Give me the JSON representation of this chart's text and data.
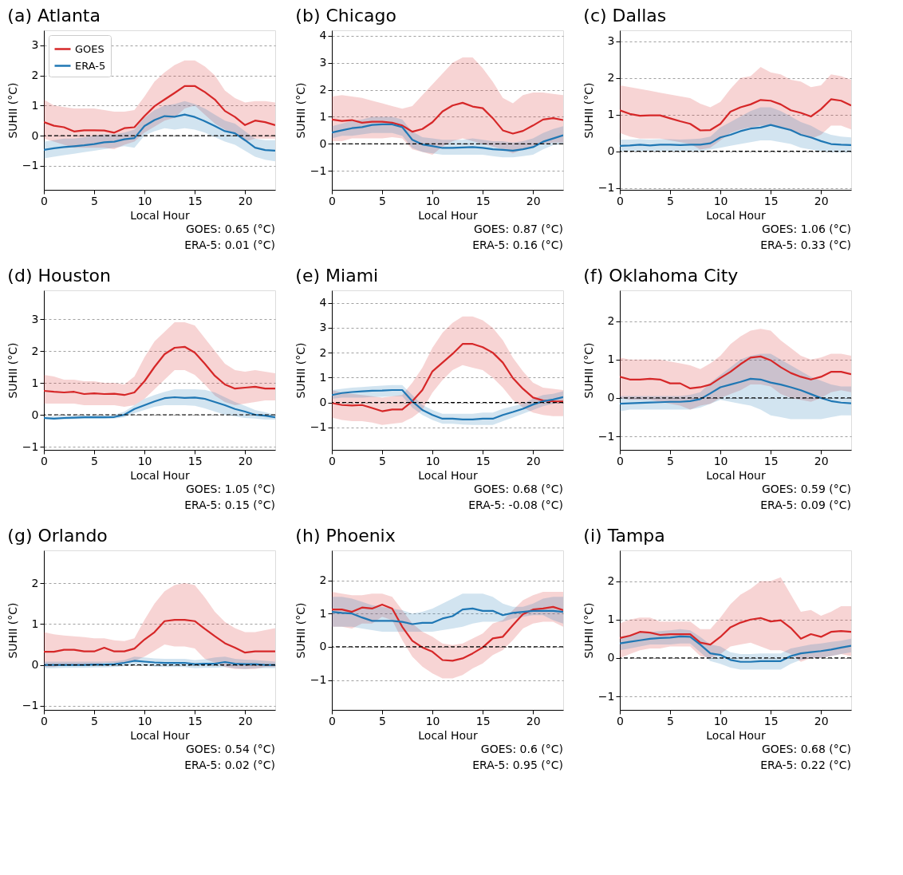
{
  "chart_data": [
    {
      "type": "line",
      "title": "(a) Atlanta",
      "xlabel": "Local Hour",
      "ylabel": "SUHII (°C)",
      "x": [
        0,
        1,
        2,
        3,
        4,
        5,
        6,
        7,
        8,
        9,
        10,
        11,
        12,
        13,
        14,
        15,
        16,
        17,
        18,
        19,
        20,
        21,
        22,
        23
      ],
      "xlim": [
        0,
        23
      ],
      "xticks": [
        0,
        5,
        10,
        15,
        20
      ],
      "ylim": [
        -1.8,
        3.5
      ],
      "yticks": [
        -1,
        0,
        1,
        2,
        3
      ],
      "grid": "y",
      "legend": "top left",
      "ref_lines": [
        {
          "axis": "y",
          "value": 0,
          "color": "#000000",
          "line_style": "dashed"
        }
      ],
      "annotations": [
        "GOES: 0.65 (°C)",
        "ERA-5:  0.01 (°C)"
      ],
      "series": [
        {
          "name": "GOES",
          "color": "#d62728",
          "values": [
            0.45,
            0.33,
            0.28,
            0.14,
            0.18,
            0.18,
            0.17,
            0.1,
            0.25,
            0.28,
            0.65,
            0.98,
            1.2,
            1.42,
            1.65,
            1.65,
            1.45,
            1.2,
            0.82,
            0.62,
            0.35,
            0.5,
            0.45,
            0.35
          ],
          "lower": [
            -0.1,
            -0.2,
            -0.3,
            -0.4,
            -0.4,
            -0.4,
            -0.4,
            -0.45,
            -0.3,
            -0.2,
            0.1,
            0.3,
            0.5,
            0.6,
            0.9,
            1.0,
            0.7,
            0.4,
            0.2,
            0.05,
            -0.2,
            -0.1,
            -0.1,
            -0.1
          ],
          "upper": [
            1.2,
            1.0,
            0.95,
            0.9,
            0.9,
            0.9,
            0.85,
            0.8,
            0.8,
            0.85,
            1.3,
            1.8,
            2.1,
            2.35,
            2.5,
            2.5,
            2.3,
            2.0,
            1.5,
            1.25,
            1.1,
            1.15,
            1.15,
            1.1
          ]
        },
        {
          "name": "ERA-5",
          "color": "#1f77b4",
          "values": [
            -0.47,
            -0.42,
            -0.38,
            -0.35,
            -0.32,
            -0.28,
            -0.22,
            -0.2,
            -0.12,
            -0.08,
            0.32,
            0.52,
            0.65,
            0.63,
            0.7,
            0.62,
            0.48,
            0.32,
            0.15,
            0.08,
            -0.15,
            -0.4,
            -0.48,
            -0.5
          ],
          "lower": [
            -0.75,
            -0.7,
            -0.65,
            -0.6,
            -0.55,
            -0.5,
            -0.45,
            -0.4,
            -0.35,
            -0.4,
            0.0,
            0.15,
            0.25,
            0.2,
            0.25,
            0.2,
            0.1,
            -0.05,
            -0.2,
            -0.3,
            -0.5,
            -0.7,
            -0.8,
            -0.85
          ],
          "upper": [
            -0.2,
            -0.15,
            -0.1,
            -0.1,
            -0.05,
            0,
            0.05,
            0.05,
            0.1,
            0.2,
            0.6,
            0.85,
            1.0,
            1.05,
            1.15,
            1.05,
            0.9,
            0.7,
            0.5,
            0.4,
            0.15,
            -0.1,
            -0.15,
            -0.15
          ]
        }
      ]
    },
    {
      "type": "line",
      "title": "(b) Chicago",
      "xlabel": "Local Hour",
      "ylabel": "SUHII (°C)",
      "x": [
        0,
        1,
        2,
        3,
        4,
        5,
        6,
        7,
        8,
        9,
        10,
        11,
        12,
        13,
        14,
        15,
        16,
        17,
        18,
        19,
        20,
        21,
        22,
        23
      ],
      "xlim": [
        0,
        23
      ],
      "xticks": [
        0,
        5,
        10,
        15,
        20
      ],
      "ylim": [
        -1.7,
        4.2
      ],
      "yticks": [
        -1,
        0,
        1,
        2,
        3,
        4
      ],
      "grid": "y",
      "ref_lines": [
        {
          "axis": "y",
          "value": 0,
          "color": "#000000",
          "line_style": "dashed"
        }
      ],
      "annotations": [
        "GOES: 0.87 (°C)",
        "ERA-5:  0.16 (°C)"
      ],
      "series": [
        {
          "color": "#d62728",
          "values": [
            0.9,
            0.85,
            0.88,
            0.78,
            0.82,
            0.82,
            0.78,
            0.68,
            0.45,
            0.55,
            0.8,
            1.2,
            1.42,
            1.52,
            1.38,
            1.32,
            0.95,
            0.5,
            0.38,
            0.48,
            0.68,
            0.9,
            0.95,
            0.88
          ],
          "lower": [
            0.1,
            0.1,
            0.2,
            0.2,
            0.2,
            0.2,
            0.25,
            0.2,
            -0.2,
            -0.3,
            -0.4,
            -0.1,
            0.1,
            0.2,
            0.1,
            0.0,
            -0.1,
            -0.2,
            -0.35,
            -0.2,
            -0.1,
            0.0,
            0.05,
            0.05
          ],
          "upper": [
            1.75,
            1.8,
            1.75,
            1.7,
            1.6,
            1.5,
            1.4,
            1.3,
            1.4,
            1.8,
            2.2,
            2.6,
            3.0,
            3.2,
            3.2,
            2.8,
            2.3,
            1.7,
            1.5,
            1.8,
            1.9,
            1.9,
            1.85,
            1.8
          ]
        },
        {
          "color": "#1f77b4",
          "values": [
            0.42,
            0.5,
            0.58,
            0.62,
            0.7,
            0.72,
            0.72,
            0.62,
            0.15,
            -0.02,
            -0.08,
            -0.15,
            -0.15,
            -0.13,
            -0.12,
            -0.15,
            -0.2,
            -0.22,
            -0.25,
            -0.2,
            -0.12,
            0.08,
            0.2,
            0.32
          ],
          "lower": [
            0.2,
            0.3,
            0.3,
            0.35,
            0.4,
            0.4,
            0.4,
            0.3,
            -0.15,
            -0.3,
            -0.35,
            -0.4,
            -0.4,
            -0.4,
            -0.4,
            -0.4,
            -0.45,
            -0.5,
            -0.5,
            -0.45,
            -0.4,
            -0.2,
            -0.05,
            0.0
          ],
          "upper": [
            0.65,
            0.75,
            0.85,
            0.9,
            1.0,
            1.0,
            1.0,
            0.9,
            0.45,
            0.25,
            0.2,
            0.15,
            0.15,
            0.15,
            0.2,
            0.15,
            0.1,
            0.1,
            0.05,
            0.1,
            0.2,
            0.4,
            0.55,
            0.65
          ]
        }
      ]
    },
    {
      "type": "line",
      "title": "(c) Dallas",
      "xlabel": "Local Hour",
      "ylabel": "SUHII (°C)",
      "x": [
        0,
        1,
        2,
        3,
        4,
        5,
        6,
        7,
        8,
        9,
        10,
        11,
        12,
        13,
        14,
        15,
        16,
        17,
        18,
        19,
        20,
        21,
        22,
        23
      ],
      "xlim": [
        0,
        23
      ],
      "xticks": [
        0,
        5,
        10,
        15,
        20
      ],
      "ylim": [
        -1.05,
        3.3
      ],
      "yticks": [
        -1,
        0,
        1,
        2,
        3
      ],
      "grid": "y",
      "ref_lines": [
        {
          "axis": "y",
          "value": 0,
          "color": "#000000",
          "line_style": "dashed"
        }
      ],
      "annotations": [
        "GOES: 1.06 (°C)",
        "ERA-5:  0.33 (°C)"
      ],
      "series": [
        {
          "color": "#d62728",
          "values": [
            1.12,
            1.02,
            0.97,
            0.98,
            0.98,
            0.9,
            0.82,
            0.75,
            0.57,
            0.58,
            0.75,
            1.08,
            1.2,
            1.28,
            1.4,
            1.38,
            1.28,
            1.12,
            1.05,
            0.95,
            1.15,
            1.42,
            1.38,
            1.25
          ],
          "lower": [
            0.5,
            0.4,
            0.35,
            0.35,
            0.35,
            0.3,
            0.25,
            0.2,
            0.05,
            0.1,
            0.3,
            0.5,
            0.6,
            0.65,
            0.7,
            0.7,
            0.65,
            0.55,
            0.45,
            0.35,
            0.45,
            0.7,
            0.7,
            0.6
          ],
          "upper": [
            1.8,
            1.75,
            1.7,
            1.65,
            1.6,
            1.55,
            1.5,
            1.45,
            1.3,
            1.2,
            1.35,
            1.7,
            2.0,
            2.05,
            2.3,
            2.15,
            2.1,
            1.95,
            1.9,
            1.75,
            1.8,
            2.1,
            2.05,
            1.95
          ]
        },
        {
          "color": "#1f77b4",
          "values": [
            0.15,
            0.16,
            0.18,
            0.16,
            0.18,
            0.18,
            0.17,
            0.18,
            0.18,
            0.22,
            0.38,
            0.45,
            0.55,
            0.62,
            0.65,
            0.72,
            0.65,
            0.58,
            0.45,
            0.38,
            0.28,
            0.2,
            0.18,
            0.17
          ],
          "lower": [
            0,
            0,
            0,
            0,
            0,
            0,
            0,
            0,
            0,
            0.05,
            0.1,
            0.15,
            0.2,
            0.25,
            0.3,
            0.3,
            0.25,
            0.2,
            0.1,
            0.05,
            0,
            -0.02,
            -0.03,
            -0.03
          ],
          "upper": [
            0.32,
            0.32,
            0.33,
            0.32,
            0.33,
            0.33,
            0.32,
            0.33,
            0.35,
            0.4,
            0.65,
            0.8,
            0.95,
            1.1,
            1.2,
            1.2,
            1.1,
            0.95,
            0.8,
            0.7,
            0.55,
            0.45,
            0.4,
            0.38
          ]
        }
      ]
    },
    {
      "type": "line",
      "title": "(d) Houston",
      "xlabel": "Local Hour",
      "ylabel": "SUHII (°C)",
      "x": [
        0,
        1,
        2,
        3,
        4,
        5,
        6,
        7,
        8,
        9,
        10,
        11,
        12,
        13,
        14,
        15,
        16,
        17,
        18,
        19,
        20,
        21,
        22,
        23
      ],
      "xlim": [
        0,
        23
      ],
      "xticks": [
        0,
        5,
        10,
        15,
        20
      ],
      "ylim": [
        -1.1,
        3.9
      ],
      "yticks": [
        -1,
        0,
        1,
        2,
        3
      ],
      "grid": "y",
      "ref_lines": [
        {
          "axis": "y",
          "value": 0,
          "color": "#000000",
          "line_style": "dashed"
        }
      ],
      "annotations": [
        "GOES: 1.05 (°C)",
        "ERA-5:  0.15 (°C)"
      ],
      "series": [
        {
          "color": "#d62728",
          "values": [
            0.75,
            0.72,
            0.7,
            0.72,
            0.65,
            0.67,
            0.65,
            0.66,
            0.62,
            0.7,
            1.05,
            1.5,
            1.9,
            2.1,
            2.13,
            1.95,
            1.6,
            1.22,
            0.95,
            0.82,
            0.85,
            0.88,
            0.82,
            0.82
          ],
          "lower": [
            0.35,
            0.35,
            0.35,
            0.35,
            0.3,
            0.3,
            0.3,
            0.3,
            0.25,
            0.3,
            0.5,
            0.8,
            1.1,
            1.4,
            1.4,
            1.25,
            0.95,
            0.6,
            0.4,
            0.3,
            0.35,
            0.4,
            0.45,
            0.45
          ],
          "upper": [
            1.25,
            1.2,
            1.1,
            1.1,
            1.05,
            1.05,
            1.0,
            1.0,
            0.95,
            1.2,
            1.8,
            2.3,
            2.6,
            2.9,
            2.9,
            2.8,
            2.4,
            2.0,
            1.6,
            1.4,
            1.35,
            1.4,
            1.35,
            1.3
          ]
        },
        {
          "color": "#1f77b4",
          "values": [
            -0.1,
            -0.12,
            -0.1,
            -0.09,
            -0.08,
            -0.08,
            -0.08,
            -0.07,
            0.0,
            0.18,
            0.3,
            0.42,
            0.52,
            0.55,
            0.53,
            0.54,
            0.5,
            0.4,
            0.3,
            0.18,
            0.1,
            0.0,
            -0.03,
            -0.08
          ],
          "lower": [
            -0.15,
            -0.15,
            -0.15,
            -0.14,
            -0.13,
            -0.13,
            -0.13,
            -0.12,
            -0.08,
            0.05,
            0.15,
            0.25,
            0.3,
            0.3,
            0.3,
            0.28,
            0.2,
            0.1,
            0.0,
            -0.05,
            -0.1,
            -0.12,
            -0.15,
            -0.15
          ],
          "upper": [
            -0.05,
            -0.05,
            -0.04,
            -0.03,
            -0.02,
            -0.02,
            -0.02,
            0.0,
            0.1,
            0.3,
            0.5,
            0.62,
            0.72,
            0.8,
            0.8,
            0.8,
            0.78,
            0.7,
            0.55,
            0.4,
            0.28,
            0.15,
            0.08,
            0.0
          ]
        }
      ]
    },
    {
      "type": "line",
      "title": "(e) Miami",
      "xlabel": "Local Hour",
      "ylabel": "SUHII (°C)",
      "x": [
        0,
        1,
        2,
        3,
        4,
        5,
        6,
        7,
        8,
        9,
        10,
        11,
        12,
        13,
        14,
        15,
        16,
        17,
        18,
        19,
        20,
        21,
        22,
        23
      ],
      "xlim": [
        0,
        23
      ],
      "xticks": [
        0,
        5,
        10,
        15,
        20
      ],
      "ylim": [
        -1.9,
        4.5
      ],
      "yticks": [
        -1,
        0,
        1,
        2,
        3,
        4
      ],
      "grid": "y",
      "ref_lines": [
        {
          "axis": "y",
          "value": 0,
          "color": "#000000",
          "line_style": "dashed"
        }
      ],
      "annotations": [
        "GOES: 0.68 (°C)",
        "ERA-5:  -0.08 (°C)"
      ],
      "series": [
        {
          "color": "#d62728",
          "values": [
            -0.02,
            -0.1,
            -0.12,
            -0.1,
            -0.22,
            -0.35,
            -0.28,
            -0.28,
            0.05,
            0.5,
            1.25,
            1.6,
            1.95,
            2.35,
            2.35,
            2.22,
            2.0,
            1.6,
            0.98,
            0.55,
            0.2,
            0.08,
            0.05,
            0.04
          ],
          "lower": [
            -0.6,
            -0.7,
            -0.75,
            -0.75,
            -0.8,
            -0.9,
            -0.85,
            -0.8,
            -0.6,
            -0.3,
            0.4,
            0.9,
            1.3,
            1.5,
            1.4,
            1.3,
            1.0,
            0.6,
            0.1,
            -0.2,
            -0.4,
            -0.5,
            -0.55,
            -0.55
          ],
          "upper": [
            0.5,
            0.4,
            0.35,
            0.3,
            0.25,
            0.2,
            0.25,
            0.3,
            0.8,
            1.4,
            2.2,
            2.8,
            3.2,
            3.45,
            3.45,
            3.3,
            3.0,
            2.5,
            1.8,
            1.25,
            0.8,
            0.6,
            0.55,
            0.5
          ]
        },
        {
          "color": "#1f77b4",
          "values": [
            0.3,
            0.38,
            0.42,
            0.45,
            0.47,
            0.48,
            0.5,
            0.5,
            0.05,
            -0.3,
            -0.5,
            -0.65,
            -0.65,
            -0.68,
            -0.68,
            -0.65,
            -0.65,
            -0.5,
            -0.38,
            -0.25,
            -0.08,
            0.05,
            0.12,
            0.22
          ],
          "lower": [
            0.15,
            0.2,
            0.2,
            0.2,
            0.22,
            0.23,
            0.25,
            0.25,
            -0.2,
            -0.5,
            -0.7,
            -0.85,
            -0.85,
            -0.88,
            -0.9,
            -0.9,
            -0.9,
            -0.75,
            -0.6,
            -0.45,
            -0.3,
            -0.15,
            -0.05,
            0.0
          ],
          "upper": [
            0.5,
            0.55,
            0.6,
            0.62,
            0.65,
            0.68,
            0.7,
            0.7,
            0.3,
            -0.1,
            -0.3,
            -0.45,
            -0.45,
            -0.45,
            -0.45,
            -0.4,
            -0.4,
            -0.25,
            -0.15,
            -0.05,
            0.15,
            0.3,
            0.35,
            0.45
          ]
        }
      ]
    },
    {
      "type": "line",
      "title": "(f) Oklahoma City",
      "xlabel": "Local Hour",
      "ylabel": "SUHII (°C)",
      "x": [
        0,
        1,
        2,
        3,
        4,
        5,
        6,
        7,
        8,
        9,
        10,
        11,
        12,
        13,
        14,
        15,
        16,
        17,
        18,
        19,
        20,
        21,
        22,
        23
      ],
      "xlim": [
        0,
        23
      ],
      "xticks": [
        0,
        5,
        10,
        15,
        20
      ],
      "ylim": [
        -1.35,
        2.8
      ],
      "yticks": [
        -1,
        0,
        1,
        2
      ],
      "grid": "y",
      "ref_lines": [
        {
          "axis": "y",
          "value": 0,
          "color": "#000000",
          "line_style": "dashed"
        }
      ],
      "annotations": [
        "GOES: 0.59 (°C)",
        "ERA-5:  0.09 (°C)"
      ],
      "series": [
        {
          "color": "#d62728",
          "values": [
            0.55,
            0.48,
            0.48,
            0.5,
            0.48,
            0.38,
            0.38,
            0.25,
            0.28,
            0.35,
            0.52,
            0.68,
            0.88,
            1.05,
            1.08,
            0.98,
            0.8,
            0.65,
            0.55,
            0.48,
            0.55,
            0.68,
            0.68,
            0.62
          ],
          "lower": [
            0.0,
            -0.05,
            -0.05,
            -0.05,
            -0.1,
            -0.15,
            -0.2,
            -0.3,
            -0.2,
            -0.15,
            0.0,
            0.1,
            0.2,
            0.35,
            0.35,
            0.3,
            0.1,
            0.0,
            -0.05,
            -0.1,
            0.0,
            0.15,
            0.2,
            0.15
          ],
          "upper": [
            1.05,
            1.0,
            1.0,
            1.0,
            1.0,
            0.95,
            0.9,
            0.85,
            0.75,
            0.9,
            1.1,
            1.4,
            1.6,
            1.75,
            1.8,
            1.75,
            1.5,
            1.3,
            1.1,
            1.0,
            1.05,
            1.15,
            1.15,
            1.1
          ]
        },
        {
          "color": "#1f77b4",
          "values": [
            -0.15,
            -0.14,
            -0.13,
            -0.12,
            -0.11,
            -0.1,
            -0.1,
            -0.08,
            -0.03,
            0.12,
            0.28,
            0.35,
            0.42,
            0.5,
            0.48,
            0.4,
            0.35,
            0.28,
            0.2,
            0.1,
            0.0,
            -0.08,
            -0.12,
            -0.14
          ],
          "lower": [
            -0.35,
            -0.3,
            -0.3,
            -0.3,
            -0.3,
            -0.3,
            -0.3,
            -0.3,
            -0.25,
            -0.15,
            -0.05,
            -0.1,
            -0.15,
            -0.2,
            -0.3,
            -0.45,
            -0.5,
            -0.55,
            -0.55,
            -0.55,
            -0.55,
            -0.5,
            -0.45,
            -0.45
          ],
          "upper": [
            0.05,
            0.05,
            0.05,
            0.05,
            0.05,
            0.05,
            0.05,
            0.08,
            0.15,
            0.4,
            0.6,
            0.8,
            1.0,
            1.1,
            1.15,
            1.15,
            1.0,
            0.85,
            0.7,
            0.55,
            0.45,
            0.35,
            0.3,
            0.3
          ]
        }
      ]
    },
    {
      "type": "line",
      "title": "(g) Orlando",
      "xlabel": "Local Hour",
      "ylabel": "SUHII (°C)",
      "x": [
        0,
        1,
        2,
        3,
        4,
        5,
        6,
        7,
        8,
        9,
        10,
        11,
        12,
        13,
        14,
        15,
        16,
        17,
        18,
        19,
        20,
        21,
        22,
        23
      ],
      "xlim": [
        0,
        23
      ],
      "xticks": [
        0,
        5,
        10,
        15,
        20
      ],
      "ylim": [
        -1.1,
        2.8
      ],
      "yticks": [
        -1,
        0,
        1,
        2
      ],
      "grid": "y",
      "ref_lines": [
        {
          "axis": "y",
          "value": 0,
          "color": "#000000",
          "line_style": "dashed"
        }
      ],
      "annotations": [
        "GOES: 0.54 (°C)",
        "ERA-5:  0.02 (°C)"
      ],
      "series": [
        {
          "color": "#d62728",
          "values": [
            0.32,
            0.32,
            0.37,
            0.37,
            0.33,
            0.33,
            0.42,
            0.33,
            0.33,
            0.4,
            0.62,
            0.8,
            1.07,
            1.1,
            1.1,
            1.07,
            0.88,
            0.7,
            0.53,
            0.42,
            0.3,
            0.33,
            0.33,
            0.33
          ],
          "lower": [
            -0.05,
            -0.05,
            0.0,
            0.0,
            0.0,
            0.0,
            0.05,
            0.05,
            0.05,
            0.1,
            0.2,
            0.35,
            0.5,
            0.45,
            0.45,
            0.4,
            0.15,
            0.05,
            -0.05,
            -0.1,
            -0.1,
            -0.1,
            -0.05,
            -0.05
          ],
          "upper": [
            0.8,
            0.75,
            0.72,
            0.7,
            0.68,
            0.65,
            0.65,
            0.6,
            0.58,
            0.65,
            1.1,
            1.5,
            1.8,
            1.95,
            2.0,
            1.95,
            1.65,
            1.3,
            1.05,
            0.9,
            0.8,
            0.8,
            0.85,
            0.9
          ]
        },
        {
          "color": "#1f77b4",
          "values": [
            0.0,
            0.0,
            0.0,
            0.0,
            0.0,
            0.01,
            0.01,
            0.02,
            0.05,
            0.1,
            0.08,
            0.06,
            0.05,
            0.05,
            0.05,
            0.02,
            0.03,
            0.03,
            0.07,
            0.03,
            0.02,
            0.02,
            0.0,
            0.0
          ],
          "lower": [
            -0.08,
            -0.08,
            -0.07,
            -0.07,
            -0.07,
            -0.06,
            -0.06,
            -0.05,
            -0.03,
            0.0,
            -0.02,
            -0.04,
            -0.05,
            -0.05,
            -0.05,
            -0.08,
            -0.07,
            -0.07,
            -0.05,
            -0.08,
            -0.1,
            -0.08,
            -0.08,
            -0.08
          ],
          "upper": [
            0.08,
            0.08,
            0.08,
            0.08,
            0.08,
            0.08,
            0.08,
            0.09,
            0.12,
            0.2,
            0.18,
            0.16,
            0.15,
            0.15,
            0.15,
            0.12,
            0.14,
            0.18,
            0.2,
            0.15,
            0.13,
            0.12,
            0.1,
            0.08
          ]
        }
      ]
    },
    {
      "type": "line",
      "title": "(h) Phoenix",
      "xlabel": "Local Hour",
      "ylabel": "SUHII (°C)",
      "x": [
        0,
        1,
        2,
        3,
        4,
        5,
        6,
        7,
        8,
        9,
        10,
        11,
        12,
        13,
        14,
        15,
        16,
        17,
        18,
        19,
        20,
        21,
        22,
        23
      ],
      "xlim": [
        0,
        23
      ],
      "xticks": [
        0,
        5,
        10,
        15,
        20
      ],
      "ylim": [
        -1.9,
        2.9
      ],
      "yticks": [
        -1,
        0,
        1,
        2
      ],
      "grid": "y",
      "ref_lines": [
        {
          "axis": "y",
          "value": 0,
          "color": "#000000",
          "line_style": "dashed"
        }
      ],
      "annotations": [
        "GOES: 0.6 (°C)",
        "ERA-5:  0.95 (°C)"
      ],
      "series": [
        {
          "color": "#d62728",
          "values": [
            1.12,
            1.12,
            1.05,
            1.18,
            1.15,
            1.27,
            1.15,
            0.6,
            0.18,
            -0.02,
            -0.15,
            -0.4,
            -0.42,
            -0.35,
            -0.2,
            -0.02,
            0.25,
            0.3,
            0.65,
            0.98,
            1.12,
            1.15,
            1.2,
            1.1
          ],
          "lower": [
            0.6,
            0.6,
            0.55,
            0.7,
            0.7,
            0.9,
            0.8,
            0.2,
            -0.3,
            -0.6,
            -0.8,
            -0.95,
            -0.95,
            -0.85,
            -0.65,
            -0.5,
            -0.25,
            -0.1,
            0.2,
            0.55,
            0.7,
            0.75,
            0.75,
            0.6
          ],
          "upper": [
            1.65,
            1.6,
            1.55,
            1.55,
            1.6,
            1.6,
            1.5,
            1.1,
            0.7,
            0.45,
            0.3,
            0.1,
            0.05,
            0.1,
            0.25,
            0.4,
            0.7,
            0.8,
            1.1,
            1.4,
            1.55,
            1.65,
            1.65,
            1.65
          ]
        },
        {
          "color": "#1f77b4",
          "values": [
            1.05,
            1.02,
            1.0,
            0.88,
            0.78,
            0.78,
            0.78,
            0.75,
            0.68,
            0.72,
            0.72,
            0.85,
            0.92,
            1.12,
            1.15,
            1.08,
            1.08,
            0.95,
            1.02,
            1.05,
            1.08,
            1.08,
            1.08,
            1.05
          ],
          "lower": [
            0.6,
            0.6,
            0.6,
            0.55,
            0.5,
            0.45,
            0.45,
            0.45,
            0.45,
            0.45,
            0.45,
            0.5,
            0.55,
            0.6,
            0.7,
            0.75,
            0.75,
            0.75,
            0.85,
            0.9,
            0.95,
            0.95,
            0.8,
            0.7
          ],
          "upper": [
            1.5,
            1.5,
            1.45,
            1.35,
            1.25,
            1.2,
            1.15,
            1.1,
            1.0,
            1.05,
            1.15,
            1.3,
            1.45,
            1.6,
            1.6,
            1.6,
            1.5,
            1.3,
            1.2,
            1.2,
            1.3,
            1.45,
            1.5,
            1.5
          ]
        }
      ]
    },
    {
      "type": "line",
      "title": "(i) Tampa",
      "xlabel": "Local Hour",
      "ylabel": "SUHII (°C)",
      "x": [
        0,
        1,
        2,
        3,
        4,
        5,
        6,
        7,
        8,
        9,
        10,
        11,
        12,
        13,
        14,
        15,
        16,
        17,
        18,
        19,
        20,
        21,
        22,
        23
      ],
      "xlim": [
        0,
        23
      ],
      "xticks": [
        0,
        5,
        10,
        15,
        20
      ],
      "ylim": [
        -1.35,
        2.8
      ],
      "yticks": [
        -1,
        0,
        1,
        2
      ],
      "grid": "y",
      "ref_lines": [
        {
          "axis": "y",
          "value": 0,
          "color": "#000000",
          "line_style": "dashed"
        }
      ],
      "annotations": [
        "GOES: 0.68 (°C)",
        "ERA-5:  0.22 (°C)"
      ],
      "series": [
        {
          "color": "#d62728",
          "values": [
            0.52,
            0.58,
            0.68,
            0.66,
            0.6,
            0.62,
            0.62,
            0.62,
            0.4,
            0.35,
            0.55,
            0.8,
            0.92,
            1.0,
            1.04,
            0.95,
            0.98,
            0.78,
            0.5,
            0.62,
            0.55,
            0.68,
            0.7,
            0.68
          ],
          "lower": [
            0.0,
            0.1,
            0.2,
            0.25,
            0.25,
            0.3,
            0.3,
            0.3,
            0.05,
            0.0,
            0.1,
            0.3,
            0.35,
            0.4,
            0.3,
            0.2,
            0.2,
            0.1,
            -0.1,
            0.0,
            0.0,
            0.05,
            0.1,
            0.05
          ],
          "upper": [
            0.9,
            1.0,
            1.05,
            1.05,
            0.95,
            0.95,
            0.95,
            0.95,
            0.75,
            0.75,
            1.05,
            1.4,
            1.65,
            1.8,
            2.0,
            2.0,
            2.1,
            1.65,
            1.2,
            1.25,
            1.1,
            1.2,
            1.35,
            1.35
          ]
        },
        {
          "color": "#1f77b4",
          "values": [
            0.38,
            0.42,
            0.46,
            0.5,
            0.52,
            0.53,
            0.56,
            0.55,
            0.35,
            0.12,
            0.08,
            -0.05,
            -0.1,
            -0.1,
            -0.08,
            -0.08,
            -0.08,
            0.05,
            0.12,
            0.15,
            0.18,
            0.22,
            0.27,
            0.32
          ],
          "lower": [
            0.2,
            0.25,
            0.3,
            0.35,
            0.35,
            0.35,
            0.38,
            0.38,
            0.15,
            -0.08,
            -0.15,
            -0.25,
            -0.3,
            -0.3,
            -0.3,
            -0.3,
            -0.3,
            -0.15,
            -0.05,
            0.0,
            0.0,
            0.05,
            0.1,
            0.15
          ],
          "upper": [
            0.55,
            0.6,
            0.65,
            0.68,
            0.7,
            0.72,
            0.75,
            0.72,
            0.55,
            0.35,
            0.3,
            0.15,
            0.1,
            0.1,
            0.12,
            0.12,
            0.12,
            0.25,
            0.3,
            0.35,
            0.38,
            0.42,
            0.45,
            0.5
          ]
        }
      ]
    }
  ]
}
